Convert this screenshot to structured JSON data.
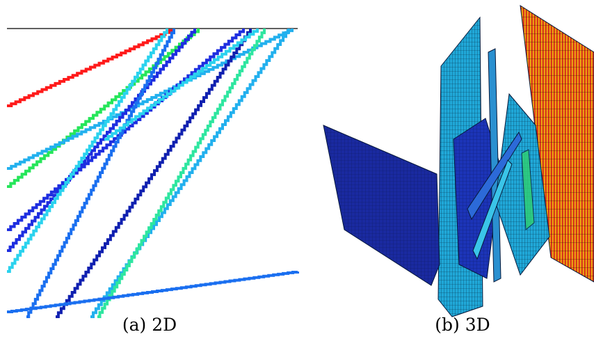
{
  "captions": {
    "a": "(a) 2D",
    "b": "(b) 3D"
  },
  "colors": {
    "red": "#ff1a1a",
    "green": "#26e65a",
    "seafoam": "#2ee6a0",
    "blue": "#1e2ee0",
    "deep_blue": "#1020b0",
    "mid_blue": "#1a6ff0",
    "sky_blue": "#22b0ee",
    "cyan": "#2ad2ee",
    "orange_red": "#d8381a",
    "yellow": "#f0d010"
  }
}
